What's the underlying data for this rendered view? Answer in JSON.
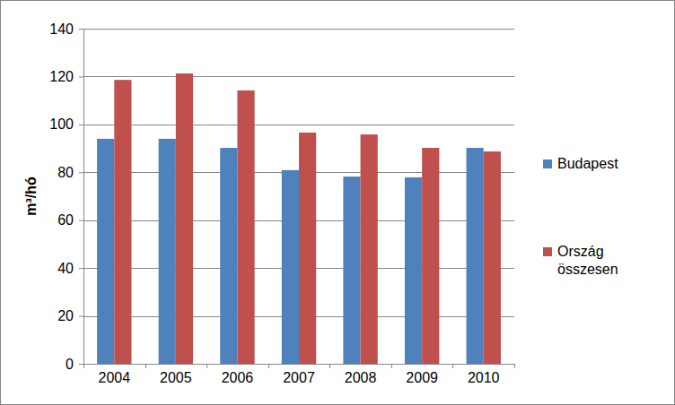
{
  "chart_data": {
    "type": "bar",
    "y_label": "m³/hó",
    "categories": [
      "2004",
      "2005",
      "2006",
      "2007",
      "2008",
      "2009",
      "2010"
    ],
    "series": [
      {
        "name": "Budapest",
        "color": "#4f81bd",
        "values": [
          94.0,
          94.0,
          90.2,
          80.9,
          78.2,
          77.9,
          90.2
        ]
      },
      {
        "name": "Ország összesen",
        "color": "#c0504d",
        "values": [
          118.6,
          121.3,
          114.2,
          96.6,
          95.8,
          90.2,
          88.7
        ]
      }
    ],
    "ylim": [
      0,
      140
    ],
    "yticks": [
      0,
      20,
      40,
      60,
      80,
      100,
      120,
      140
    ],
    "grid": true,
    "legend": "right"
  }
}
